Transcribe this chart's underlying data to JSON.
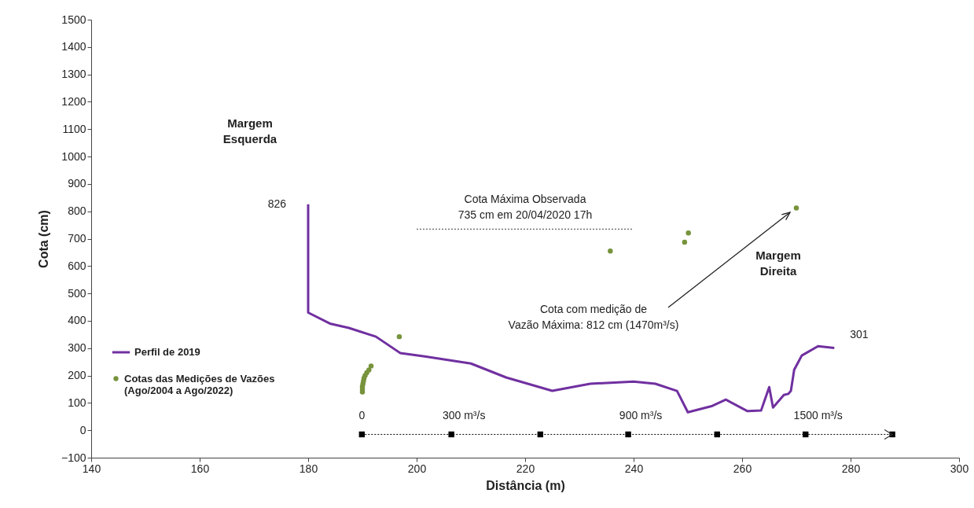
{
  "chart_data": {
    "type": "line",
    "xlabel": "Distância (m)",
    "ylabel": "Cota (cm)",
    "xlim": [
      140,
      300
    ],
    "xticks": [
      140,
      160,
      180,
      200,
      220,
      240,
      260,
      280,
      300
    ],
    "ylim": [
      -100,
      1500
    ],
    "yticks": [
      -100,
      0,
      100,
      200,
      300,
      400,
      500,
      600,
      700,
      800,
      900,
      1000,
      1100,
      1200,
      1300,
      1400,
      1500
    ],
    "grid": false,
    "legend": "bottom left",
    "series": [
      {
        "name": "Perfil de 2019",
        "color": "#7030a0",
        "marker": "none",
        "line_style": "solid",
        "x": [
          180,
          180,
          184,
          187.5,
          192.5,
          197,
          201.5,
          210,
          216.5,
          225,
          232,
          240,
          244,
          248,
          250,
          254.5,
          257,
          261,
          263.5,
          265,
          265.7,
          267.7,
          268.5,
          269,
          269.6,
          271,
          274,
          277
        ],
        "values": [
          826,
          430,
          390,
          374,
          342,
          282,
          270,
          244,
          193,
          144,
          170,
          178,
          170,
          144,
          66,
          89,
          112,
          70,
          72,
          158,
          83,
          129,
          133,
          144,
          221,
          273,
          307,
          301
        ]
      },
      {
        "name": "Cotas das Medições de Vazões\n(Ago/2004 a Ago/2022)",
        "type": "scatter",
        "color": "#77933c",
        "x": [
          190,
          190,
          190,
          190.1,
          190.2,
          190.3,
          190.5,
          190.8,
          191.2,
          191.6,
          196.8,
          235.7,
          249.4,
          250.1,
          270
        ],
        "values": [
          140,
          150,
          160,
          170,
          180,
          190,
          200,
          210,
          220,
          235,
          342,
          655,
          687,
          721,
          812
        ]
      },
      {
        "color": "#404040",
        "marker": "none",
        "line_style": "dotted",
        "x": [
          200,
          240
        ],
        "values": [
          735,
          735
        ]
      },
      {
        "color": "#000000",
        "marker": "square",
        "line_style": "dotted",
        "x": [
          189.9,
          206.4,
          222.8,
          239,
          255.4,
          271.7,
          287.7
        ],
        "values": [
          -15,
          -15,
          -15,
          -15,
          -15,
          -15,
          -15
        ]
      }
    ],
    "annotations": [
      "Margem\nEsquerda",
      "Margem\nDireita",
      {
        "text": "Cota Máxima Observada\n735 cm em 20/04/2020 17h",
        "x": 220,
        "y": 735
      },
      "Cota com medição de\nVazão Máxima: 812 cm (1470m³/s)",
      {
        "text": "826",
        "x": 180,
        "y": 826
      },
      {
        "text": "301",
        "x": 277,
        "y": 301
      },
      {
        "text": "0",
        "x": 189.9,
        "y": -15
      },
      {
        "text": "300 m³/s",
        "x": 206.4,
        "y": -15
      },
      {
        "text": "900 m³/s",
        "x": 239,
        "y": -15
      },
      {
        "text": "1500 m³/s",
        "x": 271.7,
        "y": -15
      }
    ]
  }
}
